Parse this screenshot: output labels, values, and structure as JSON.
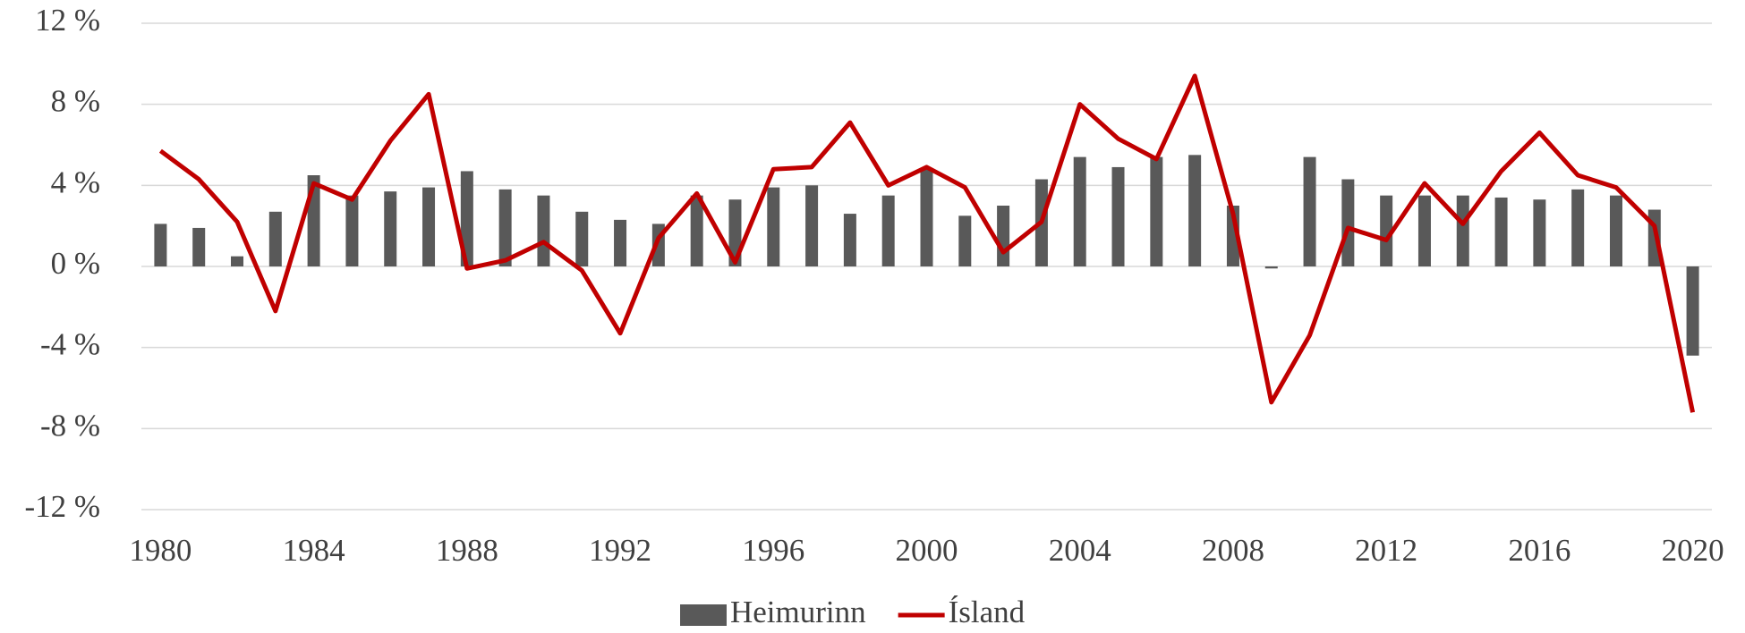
{
  "chart_data": {
    "type": "bar_line",
    "x": [
      1980,
      1981,
      1982,
      1983,
      1984,
      1985,
      1986,
      1987,
      1988,
      1989,
      1990,
      1991,
      1992,
      1993,
      1994,
      1995,
      1996,
      1997,
      1998,
      1999,
      2000,
      2001,
      2002,
      2003,
      2004,
      2005,
      2006,
      2007,
      2008,
      2009,
      2010,
      2011,
      2012,
      2013,
      2014,
      2015,
      2016,
      2017,
      2018,
      2019,
      2020
    ],
    "series": [
      {
        "name": "Heimurinn",
        "type": "bar",
        "color": "#595959",
        "values": [
          2.1,
          1.9,
          0.5,
          2.7,
          4.5,
          3.5,
          3.7,
          3.9,
          4.7,
          3.8,
          3.5,
          2.7,
          2.3,
          2.1,
          3.5,
          3.3,
          3.9,
          4.0,
          2.6,
          3.5,
          4.8,
          2.5,
          3.0,
          4.3,
          5.4,
          4.9,
          5.4,
          5.5,
          3.0,
          -0.1,
          5.4,
          4.3,
          3.5,
          3.5,
          3.5,
          3.4,
          3.3,
          3.8,
          3.5,
          2.8,
          -4.4
        ]
      },
      {
        "name": "Ísland",
        "type": "line",
        "color": "#c00000",
        "values": [
          5.7,
          4.3,
          2.2,
          -2.2,
          4.1,
          3.3,
          6.2,
          8.5,
          -0.1,
          0.3,
          1.2,
          -0.2,
          -3.3,
          1.4,
          3.6,
          0.2,
          4.8,
          4.9,
          7.1,
          4.0,
          4.9,
          3.9,
          0.7,
          2.2,
          8.0,
          6.3,
          5.3,
          9.4,
          2.6,
          -6.7,
          -3.4,
          1.9,
          1.3,
          4.1,
          2.1,
          4.7,
          6.6,
          4.5,
          3.9,
          2.0,
          -7.2
        ]
      }
    ],
    "xlim": [
      1979.5,
      2020.5
    ],
    "xticks": [
      1980,
      1984,
      1988,
      1992,
      1996,
      2000,
      2004,
      2008,
      2012,
      2016,
      2020
    ],
    "ylim": [
      -12,
      12
    ],
    "yticks": [
      {
        "value": -12,
        "label": "-12 %"
      },
      {
        "value": -8,
        "label": "-8 %"
      },
      {
        "value": -4,
        "label": "-4 %"
      },
      {
        "value": 0,
        "label": "0 %"
      },
      {
        "value": 4,
        "label": "4 %"
      },
      {
        "value": 8,
        "label": "8 %"
      },
      {
        "value": 12,
        "label": "12 %"
      }
    ],
    "grid": true,
    "legend": "bottom"
  }
}
